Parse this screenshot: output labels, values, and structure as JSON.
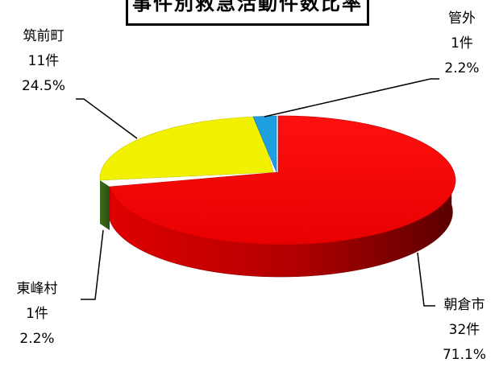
{
  "chart_data": {
    "type": "pie",
    "title": "事件別救急活動件数比率",
    "slices": [
      {
        "name": "朝倉市",
        "count_label": "32件",
        "value": 71.1,
        "percent_label": "71.1%",
        "color": "#ee0000"
      },
      {
        "name": "管外",
        "count_label": "1件",
        "value": 2.2,
        "percent_label": "2.2%",
        "color": "#1ea0e0"
      },
      {
        "name": "筑前町",
        "count_label": "11件",
        "value": 24.5,
        "percent_label": "24.5%",
        "color": "#f2f200"
      },
      {
        "name": "東峰村",
        "count_label": "1件",
        "value": 2.2,
        "percent_label": "2.2%",
        "color": "#6fae3a"
      }
    ],
    "style": "3d-pie"
  }
}
